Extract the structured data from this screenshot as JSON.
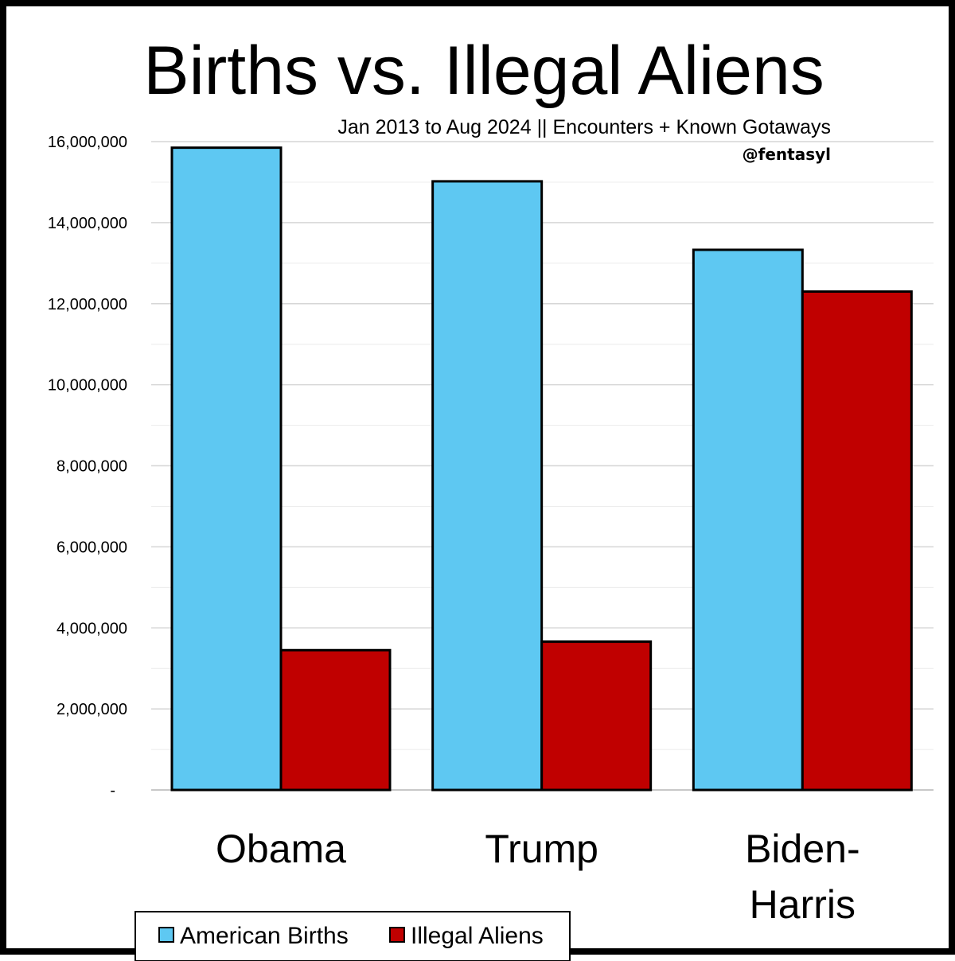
{
  "chart_data": {
    "type": "bar",
    "title": "Births vs. Illegal Aliens",
    "subtitle": "Jan 2013 to Aug 2024 || Encounters + Known Gotaways",
    "credit": "@fentasyl",
    "categories": [
      [
        "Obama"
      ],
      [
        "Trump"
      ],
      [
        "Biden-",
        "Harris"
      ]
    ],
    "series": [
      {
        "name": "American Births",
        "color": "#5ec8f2",
        "values": [
          15850000,
          15020000,
          13330000
        ]
      },
      {
        "name": "Illegal Aliens",
        "color": "#c00000",
        "values": [
          3450000,
          3660000,
          12300000
        ]
      }
    ],
    "ylim": [
      0,
      16000000
    ],
    "yticks": [
      0,
      2000000,
      4000000,
      6000000,
      8000000,
      10000000,
      12000000,
      14000000,
      16000000
    ],
    "ytick_labels": [
      "-",
      "2,000,000",
      "4,000,000",
      "6,000,000",
      "8,000,000",
      "10,000,000",
      "12,000,000",
      "14,000,000",
      "16,000,000"
    ],
    "grid": "major and minor horizontal",
    "legend": "bottom"
  }
}
